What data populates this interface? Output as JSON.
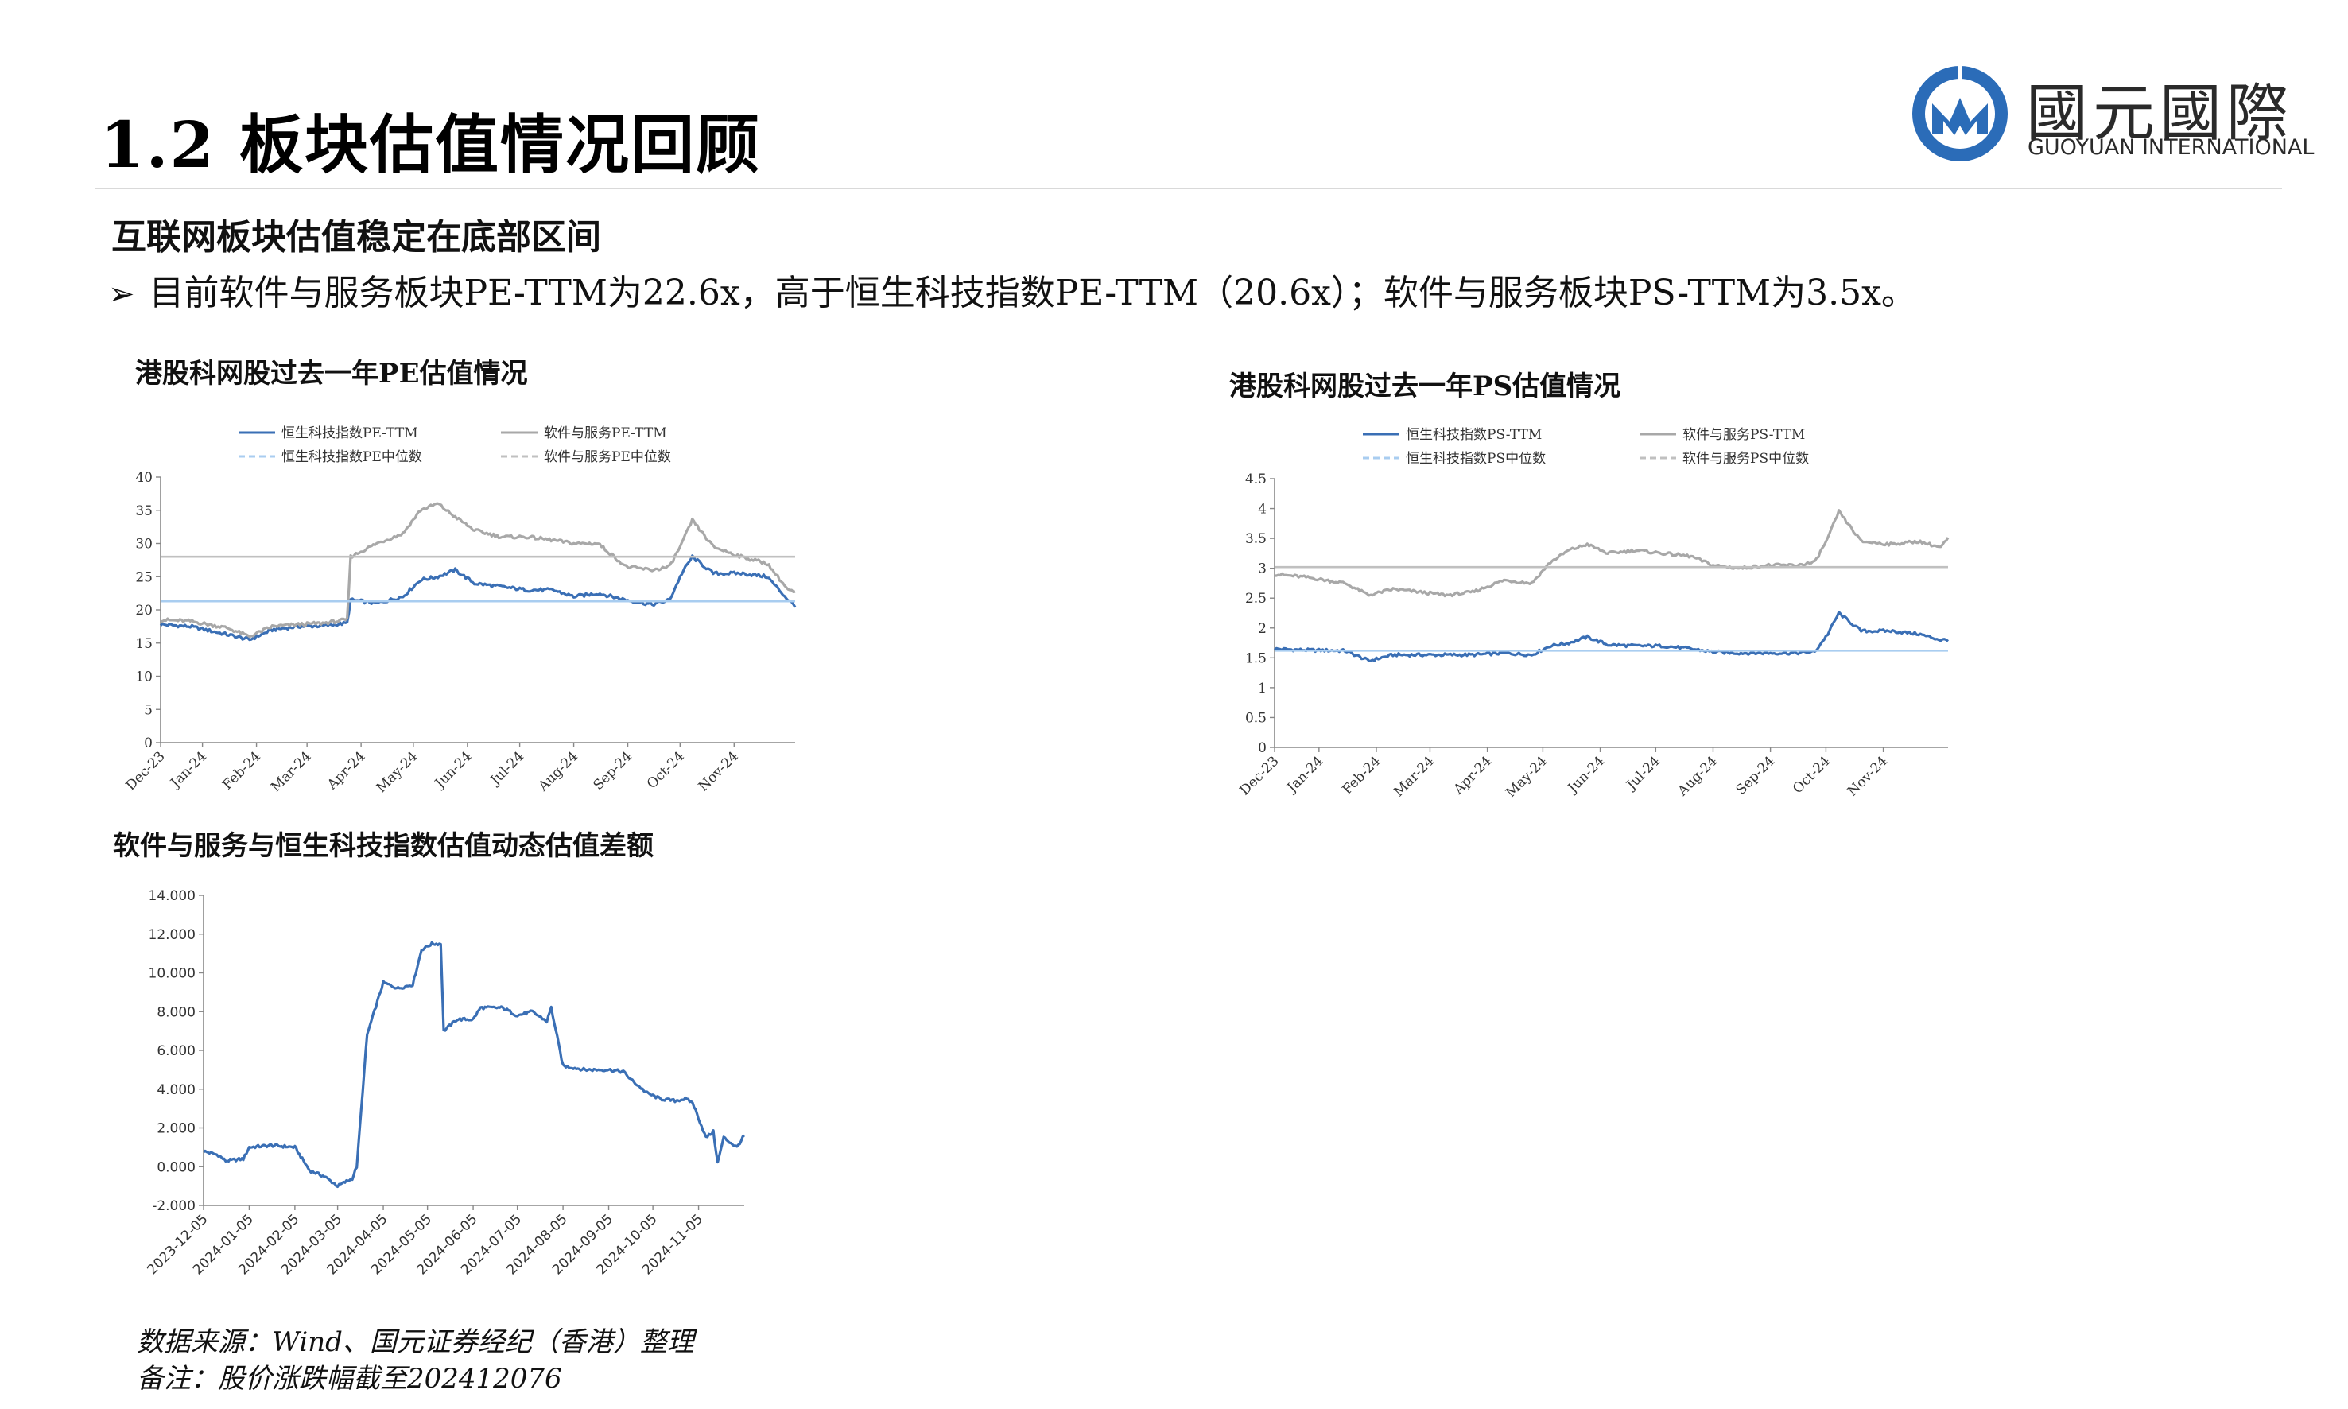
{
  "page": {
    "title": "1.2 板块估值情况回顾",
    "section_heading": "互联网板块估值稳定在底部区间",
    "bullet": "目前软件与服务板块PE-TTM为22.6x，高于恒生科技指数PE-TTM（20.6x）；软件与服务板块PS-TTM为3.5x。",
    "footnote_source": "数据来源：Wind、国元证券经纪（香港）整理",
    "footnote_note": "备注：股价涨跌幅截至202412076"
  },
  "logo": {
    "cn": "國元國際",
    "en": "GUOYUAN INTERNATIONAL",
    "icon": "guoyuan-logo-icon",
    "color": "#2b6cb8"
  },
  "colors": {
    "blue": "#3a6fb5",
    "gray": "#a8a8a8",
    "light_blue_dash": "#a9cdf0",
    "light_gray_dash": "#c0c0c0"
  },
  "chart_data": [
    {
      "id": "pe",
      "type": "line",
      "title": "港股科网股过去一年PE估值情况",
      "ylim": [
        0,
        40
      ],
      "yticks": [
        "0",
        "5",
        "10",
        "15",
        "20",
        "25",
        "30",
        "35",
        "40"
      ],
      "xticks": [
        "Dec-23",
        "Jan-24",
        "Feb-24",
        "Mar-24",
        "Apr-24",
        "May-24",
        "Jun-24",
        "Jul-24",
        "Aug-24",
        "Sep-24",
        "Oct-24",
        "Nov-24"
      ],
      "x_range": [
        "2023-12-08",
        "2024-12-06"
      ],
      "series": [
        {
          "name": "恒生科技指数PE-TTM",
          "style": "blue-solid",
          "x": [
            "2023-12-08",
            "2023-12-25",
            "2024-01-15",
            "2024-01-28",
            "2024-02-10",
            "2024-02-25",
            "2024-03-10",
            "2024-03-24",
            "2024-03-26",
            "2024-04-10",
            "2024-04-25",
            "2024-05-05",
            "2024-05-15",
            "2024-05-25",
            "2024-06-05",
            "2024-06-20",
            "2024-07-05",
            "2024-07-20",
            "2024-08-01",
            "2024-08-15",
            "2024-08-31",
            "2024-09-15",
            "2024-09-25",
            "2024-10-02",
            "2024-10-08",
            "2024-10-20",
            "2024-11-05",
            "2024-11-20",
            "2024-12-02",
            "2024-12-06"
          ],
          "values": [
            17.8,
            17.5,
            16.3,
            15.5,
            17.0,
            17.5,
            17.6,
            18.0,
            21.5,
            21.0,
            22.0,
            24.5,
            25.0,
            26.0,
            24.0,
            23.5,
            23.0,
            23.0,
            22.0,
            22.5,
            21.5,
            20.8,
            21.5,
            25.5,
            28.0,
            25.5,
            25.5,
            25.0,
            21.5,
            20.6
          ]
        },
        {
          "name": "软件与服务PE-TTM",
          "style": "gray-solid",
          "x": [
            "2023-12-08",
            "2023-12-25",
            "2024-01-15",
            "2024-01-28",
            "2024-02-10",
            "2024-02-25",
            "2024-03-10",
            "2024-03-24",
            "2024-03-26",
            "2024-04-10",
            "2024-04-25",
            "2024-05-05",
            "2024-05-15",
            "2024-05-25",
            "2024-06-05",
            "2024-06-20",
            "2024-07-05",
            "2024-07-20",
            "2024-08-01",
            "2024-08-15",
            "2024-08-31",
            "2024-09-15",
            "2024-09-25",
            "2024-10-02",
            "2024-10-08",
            "2024-10-20",
            "2024-11-05",
            "2024-11-20",
            "2024-12-02",
            "2024-12-06"
          ],
          "values": [
            18.5,
            18.3,
            17.3,
            16.0,
            17.5,
            17.8,
            18.0,
            18.5,
            28.0,
            30.0,
            31.5,
            35.0,
            36.0,
            34.0,
            32.0,
            31.0,
            31.0,
            30.5,
            30.0,
            30.0,
            26.5,
            26.0,
            26.5,
            30.0,
            33.5,
            29.5,
            28.0,
            27.0,
            23.0,
            22.6
          ]
        },
        {
          "name": "恒生科技指数PE中位数",
          "style": "blue-dash",
          "values": [
            21.3
          ]
        },
        {
          "name": "软件与服务PE中位数",
          "style": "gray-dash",
          "values": [
            28.0
          ]
        }
      ]
    },
    {
      "id": "ps",
      "type": "line",
      "title": "港股科网股过去一年PS估值情况",
      "ylim": [
        0,
        4.5
      ],
      "yticks": [
        "0",
        "0.5",
        "1",
        "1.5",
        "2",
        "2.5",
        "3",
        "3.5",
        "4",
        "4.5"
      ],
      "xticks": [
        "Dec-23",
        "Jan-24",
        "Feb-24",
        "Mar-24",
        "Apr-24",
        "May-24",
        "Jun-24",
        "Jul-24",
        "Aug-24",
        "Sep-24",
        "Oct-24",
        "Nov-24"
      ],
      "x_range": [
        "2023-12-08",
        "2024-12-06"
      ],
      "series": [
        {
          "name": "恒生科技指数PS-TTM",
          "style": "blue-solid",
          "x": [
            "2023-12-08",
            "2023-12-25",
            "2024-01-15",
            "2024-01-28",
            "2024-02-10",
            "2024-02-25",
            "2024-03-10",
            "2024-03-24",
            "2024-04-10",
            "2024-04-25",
            "2024-05-05",
            "2024-05-15",
            "2024-05-25",
            "2024-06-05",
            "2024-06-20",
            "2024-07-05",
            "2024-07-20",
            "2024-08-01",
            "2024-08-15",
            "2024-08-31",
            "2024-09-15",
            "2024-09-25",
            "2024-10-02",
            "2024-10-08",
            "2024-10-20",
            "2024-11-05",
            "2024-11-20",
            "2024-12-02",
            "2024-12-06"
          ],
          "values": [
            1.65,
            1.63,
            1.62,
            1.45,
            1.55,
            1.55,
            1.55,
            1.55,
            1.58,
            1.55,
            1.7,
            1.75,
            1.85,
            1.72,
            1.7,
            1.7,
            1.65,
            1.6,
            1.58,
            1.58,
            1.58,
            1.6,
            1.9,
            2.25,
            1.95,
            1.95,
            1.9,
            1.8,
            1.8
          ]
        },
        {
          "name": "软件与服务PS-TTM",
          "style": "gray-solid",
          "x": [
            "2023-12-08",
            "2023-12-25",
            "2024-01-15",
            "2024-01-28",
            "2024-02-10",
            "2024-02-25",
            "2024-03-10",
            "2024-03-24",
            "2024-04-10",
            "2024-04-25",
            "2024-05-05",
            "2024-05-15",
            "2024-05-25",
            "2024-06-05",
            "2024-06-20",
            "2024-07-05",
            "2024-07-20",
            "2024-08-01",
            "2024-08-15",
            "2024-08-31",
            "2024-09-15",
            "2024-09-25",
            "2024-10-02",
            "2024-10-08",
            "2024-10-20",
            "2024-11-05",
            "2024-11-20",
            "2024-12-02",
            "2024-12-06"
          ],
          "values": [
            2.9,
            2.85,
            2.75,
            2.55,
            2.65,
            2.6,
            2.55,
            2.6,
            2.8,
            2.75,
            3.1,
            3.3,
            3.4,
            3.25,
            3.3,
            3.25,
            3.2,
            3.05,
            3.0,
            3.05,
            3.05,
            3.1,
            3.5,
            3.95,
            3.45,
            3.4,
            3.45,
            3.35,
            3.5
          ]
        },
        {
          "name": "恒生科技指数PS中位数",
          "style": "blue-dash",
          "values": [
            1.62
          ]
        },
        {
          "name": "软件与服务PS中位数",
          "style": "gray-dash",
          "values": [
            3.02
          ]
        }
      ]
    },
    {
      "id": "diff",
      "type": "line",
      "title": "软件与服务与恒生科技指数估值动态估值差额",
      "ylim": [
        -2,
        14
      ],
      "yticks": [
        "-2.000",
        "0.000",
        "2.000",
        "4.000",
        "6.000",
        "8.000",
        "10.000",
        "12.000",
        "14.000"
      ],
      "xticks": [
        "2023-12-05",
        "2024-01-05",
        "2024-02-05",
        "2024-03-05",
        "2024-04-05",
        "2024-05-05",
        "2024-06-05",
        "2024-07-05",
        "2024-08-05",
        "2024-09-05",
        "2024-10-05",
        "2024-11-05"
      ],
      "x_range": [
        "2023-12-05",
        "2024-12-06"
      ],
      "series": [
        {
          "name": "",
          "style": "blue-solid",
          "x": [
            "2023-12-05",
            "2023-12-15",
            "2023-12-20",
            "2024-01-01",
            "2024-01-05",
            "2024-01-20",
            "2024-02-05",
            "2024-02-15",
            "2024-02-25",
            "2024-03-05",
            "2024-03-15",
            "2024-03-18",
            "2024-03-25",
            "2024-04-05",
            "2024-04-15",
            "2024-04-25",
            "2024-05-01",
            "2024-05-08",
            "2024-05-14",
            "2024-05-16",
            "2024-05-25",
            "2024-06-05",
            "2024-06-10",
            "2024-06-25",
            "2024-07-05",
            "2024-07-15",
            "2024-07-25",
            "2024-07-28",
            "2024-08-05",
            "2024-08-20",
            "2024-09-05",
            "2024-09-15",
            "2024-09-20",
            "2024-10-01",
            "2024-10-10",
            "2024-10-20",
            "2024-10-27",
            "2024-11-01",
            "2024-11-10",
            "2024-11-15",
            "2024-11-18",
            "2024-11-22",
            "2024-12-01",
            "2024-12-06"
          ],
          "values": [
            0.8,
            0.6,
            0.3,
            0.4,
            1.0,
            1.1,
            1.0,
            -0.2,
            -0.5,
            -1.0,
            -0.6,
            0.0,
            6.8,
            9.5,
            9.2,
            9.4,
            11.2,
            11.5,
            11.5,
            7.0,
            7.6,
            7.6,
            8.2,
            8.2,
            7.8,
            8.0,
            7.5,
            8.2,
            5.2,
            5.0,
            5.0,
            4.9,
            4.5,
            3.8,
            3.5,
            3.4,
            3.5,
            3.3,
            1.5,
            1.8,
            0.2,
            1.5,
            1.0,
            1.6
          ]
        }
      ]
    }
  ]
}
